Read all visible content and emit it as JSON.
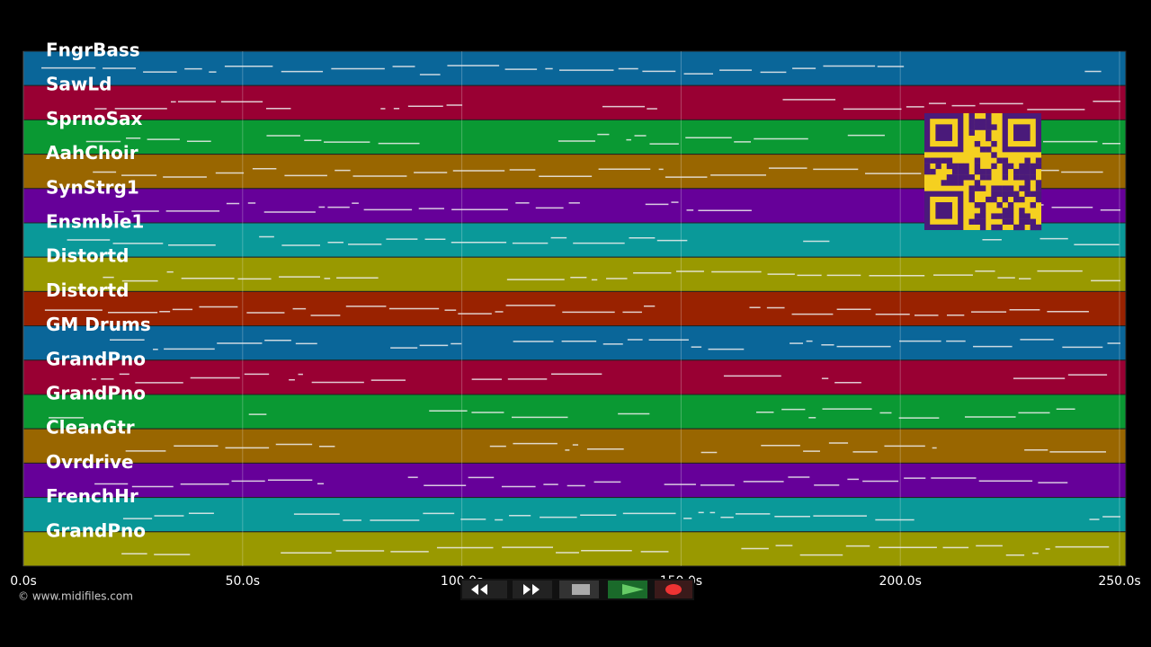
{
  "timeline": {
    "tracks": [
      {
        "name": "FngrBass",
        "color": "#0a6699"
      },
      {
        "name": "SawLd",
        "color": "#990033"
      },
      {
        "name": "SprnoSax",
        "color": "#0a9933"
      },
      {
        "name": "AahChoir",
        "color": "#996600"
      },
      {
        "name": "SynStrg1",
        "color": "#660099"
      },
      {
        "name": "Ensmble1",
        "color": "#0a9999"
      },
      {
        "name": "Distortd",
        "color": "#999900"
      },
      {
        "name": "Distortd",
        "color": "#992200"
      },
      {
        "name": "GM Drums",
        "color": "#0a6699"
      },
      {
        "name": "GrandPno",
        "color": "#990033"
      },
      {
        "name": "GrandPno",
        "color": "#0a9933"
      },
      {
        "name": "CleanGtr",
        "color": "#996600"
      },
      {
        "name": "Ovrdrive",
        "color": "#660099"
      },
      {
        "name": "FrenchHr",
        "color": "#0a9999"
      },
      {
        "name": "GrandPno",
        "color": "#999900"
      }
    ],
    "xlim": [
      0,
      250
    ],
    "xticks": [
      {
        "value": 0,
        "label": "0.0s"
      },
      {
        "value": 50,
        "label": "50.0s"
      },
      {
        "value": 100,
        "label": "100.0s"
      },
      {
        "value": 150,
        "label": "150.0s"
      },
      {
        "value": 200,
        "label": "200.0s"
      },
      {
        "value": 250,
        "label": "250.0s"
      }
    ]
  },
  "footer": {
    "credit": "© www.midifiles.com"
  }
}
